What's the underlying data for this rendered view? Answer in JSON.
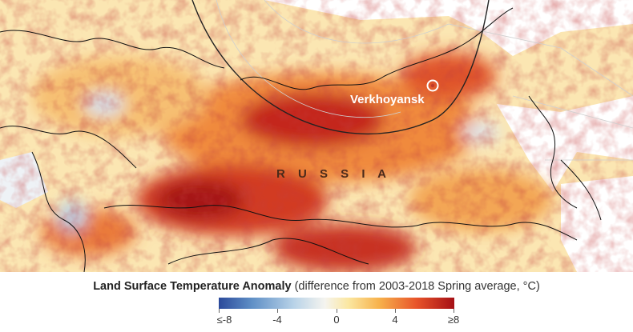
{
  "map": {
    "country_label": "R U S S I A",
    "city_label": "Verkhoyansk",
    "marker_color": "#ffffff"
  },
  "legend": {
    "title_bold": "Land Surface Temperature Anomaly",
    "title_rest": " (difference from 2003-2018 Spring average, °C)",
    "ticks": [
      "≤-8",
      "-4",
      "0",
      "4",
      "≥8"
    ],
    "colors": [
      "#2b4a9b",
      "#b9d3e8",
      "#f5f4ef",
      "#f7b24c",
      "#a50f15"
    ]
  }
}
